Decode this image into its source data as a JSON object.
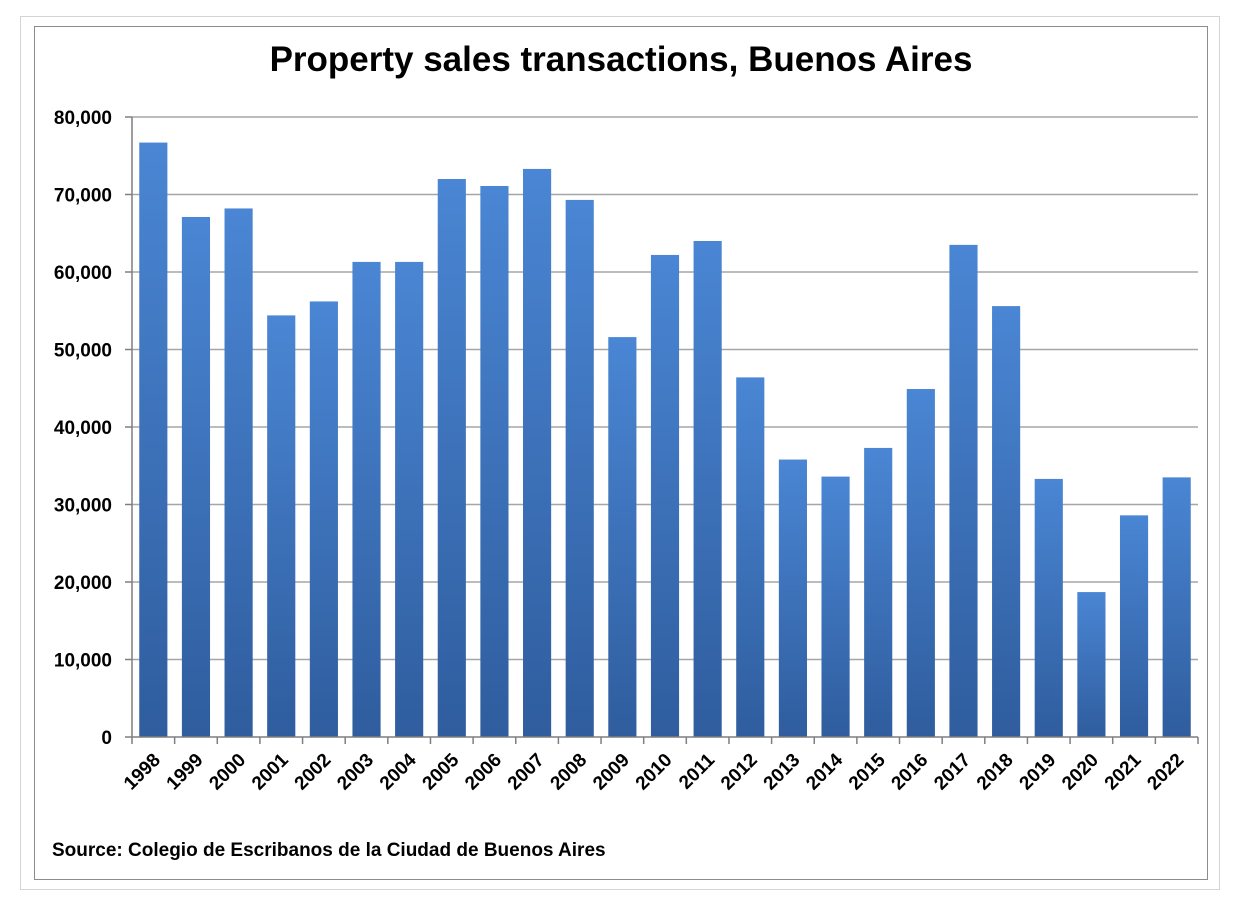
{
  "chart_data": {
    "type": "bar",
    "title": "Property sales transactions, Buenos Aires",
    "xlabel": "",
    "ylabel": "",
    "categories": [
      "1998",
      "1999",
      "2000",
      "2001",
      "2002",
      "2003",
      "2004",
      "2005",
      "2006",
      "2007",
      "2008",
      "2009",
      "2010",
      "2011",
      "2012",
      "2013",
      "2014",
      "2015",
      "2016",
      "2017",
      "2018",
      "2019",
      "2020",
      "2021",
      "2022"
    ],
    "series": [
      {
        "name": "Property sales transactions",
        "values": [
          76700,
          67100,
          68200,
          54400,
          56200,
          61300,
          61300,
          72000,
          71100,
          73300,
          69300,
          51600,
          62200,
          64000,
          46400,
          35800,
          33600,
          37300,
          44900,
          63500,
          55600,
          33300,
          18700,
          28600,
          33500
        ]
      }
    ],
    "ylim": [
      0,
      80000
    ],
    "yticks": [
      0,
      10000,
      20000,
      30000,
      40000,
      50000,
      60000,
      70000,
      80000
    ],
    "ytick_labels": [
      "0",
      "10,000",
      "20,000",
      "30,000",
      "40,000",
      "50,000",
      "60,000",
      "70,000",
      "80,000"
    ],
    "grid": true,
    "legend": "none",
    "colors": {
      "bar_top": "#4a86d4",
      "bar_bottom": "#2f5d9e",
      "grid": "#a6a6a6",
      "axis": "#7f7f7f"
    },
    "source": "Source: Colegio de Escribanos de la Ciudad de Buenos Aires"
  }
}
